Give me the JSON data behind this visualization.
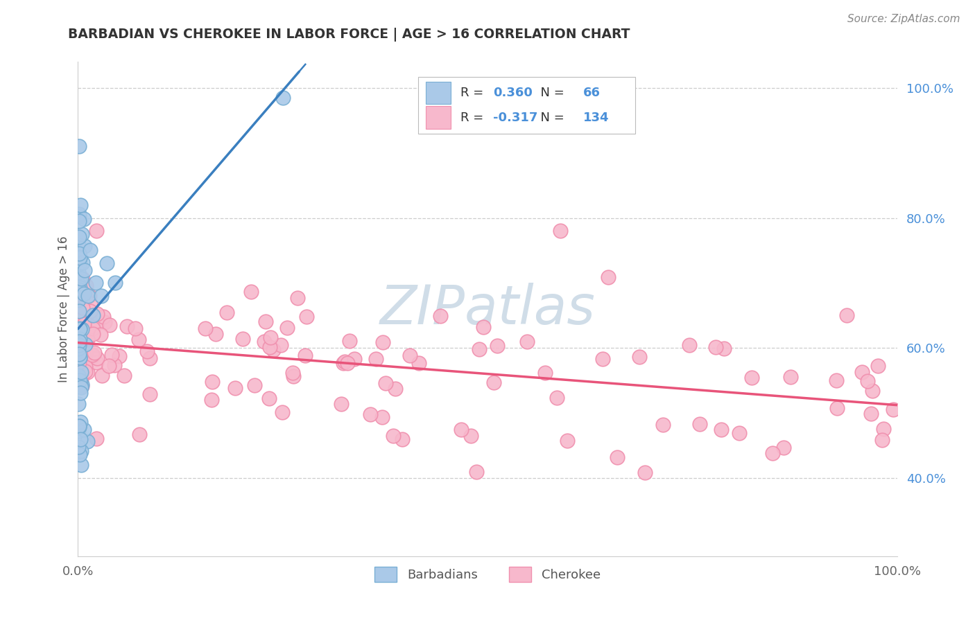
{
  "title": "BARBADIAN VS CHEROKEE IN LABOR FORCE | AGE > 16 CORRELATION CHART",
  "source_text": "Source: ZipAtlas.com",
  "ylabel": "In Labor Force | Age > 16",
  "legend_label1": "Barbadians",
  "legend_label2": "Cherokee",
  "R1": 0.36,
  "N1": 66,
  "R2": -0.317,
  "N2": 134,
  "watermark": "ZIPatlas",
  "blue_scatter_face": "#aac9e8",
  "blue_scatter_edge": "#7aafd4",
  "pink_scatter_face": "#f7b8cc",
  "pink_scatter_edge": "#f090ae",
  "blue_line_color": "#3a7fbf",
  "pink_line_color": "#e8547a",
  "legend_text_color": "#4a90d9",
  "title_color": "#333333",
  "grid_color": "#cccccc",
  "tick_color": "#666666",
  "source_color": "#888888",
  "ylabel_color": "#555555",
  "xlim": [
    0.0,
    1.0
  ],
  "ylim": [
    0.28,
    1.04
  ],
  "yticks": [
    0.4,
    0.6,
    0.8,
    1.0
  ],
  "ytick_labels": [
    "40.0%",
    "60.0%",
    "80.0%",
    "100.0%"
  ],
  "xticks": [
    0.0,
    1.0
  ],
  "xtick_labels": [
    "0.0%",
    "100.0%"
  ]
}
